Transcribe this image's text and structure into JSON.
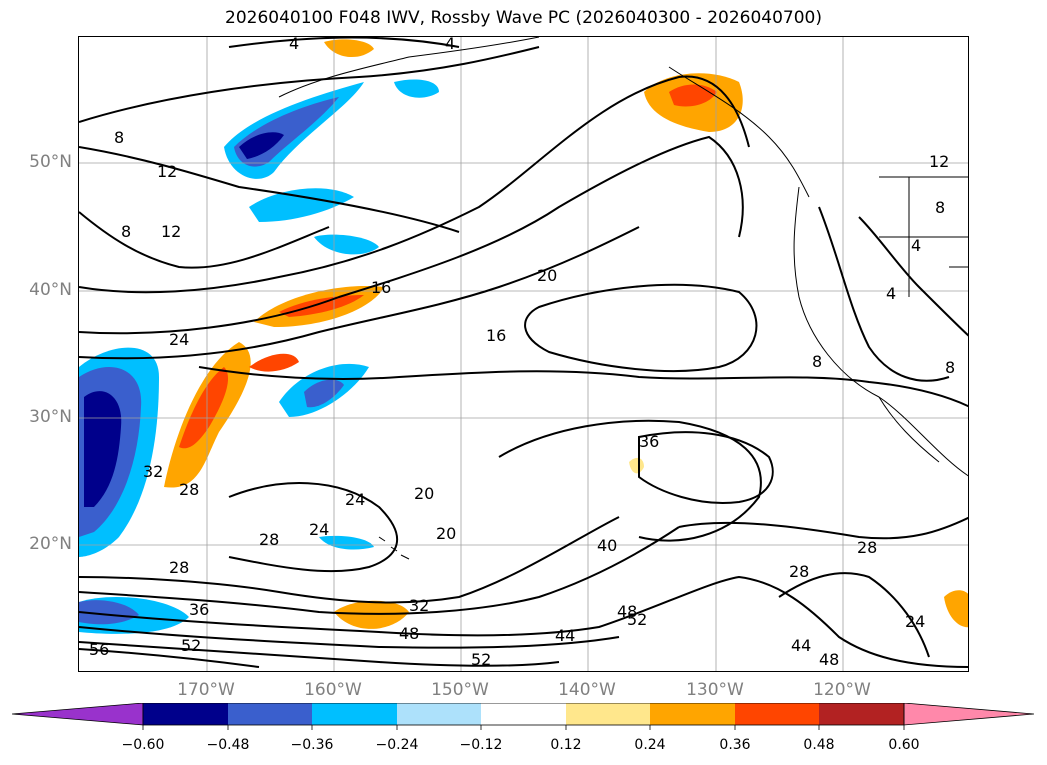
{
  "title": "2026040100 F048 IWV, Rossby Wave PC (2026040300 - 2026040700)",
  "latitude_labels": [
    "50°N",
    "40°N",
    "30°N",
    "20°N"
  ],
  "longitude_labels": [
    "170°W",
    "160°W",
    "150°W",
    "140°W",
    "130°W",
    "120°W"
  ],
  "contour_labels": [
    "4",
    "8",
    "12",
    "8",
    "12",
    "4",
    "12",
    "8",
    "4",
    "4",
    "16",
    "20",
    "24",
    "16",
    "8",
    "36",
    "32",
    "28",
    "24",
    "28",
    "24",
    "20",
    "20",
    "40",
    "28",
    "28",
    "36",
    "32",
    "48",
    "52",
    "56",
    "52",
    "44",
    "48",
    "52",
    "44",
    "48",
    "24",
    "28",
    "8"
  ],
  "colorbar": {
    "tick_labels": [
      "−0.60",
      "−0.48",
      "−0.36",
      "−0.24",
      "−0.12",
      "0.12",
      "0.24",
      "0.36",
      "0.48",
      "0.60"
    ],
    "colors": [
      "#9932CC",
      "#00008B",
      "#3A5FCD",
      "#00BFFF",
      "#ADE1FB",
      "#FFFFFF",
      "#FFE78C",
      "#FFA500",
      "#FF4500",
      "#B22222",
      "#FF88AA"
    ]
  },
  "palette": {
    "contour": "#000000",
    "coast": "#000000",
    "grid": "#a0a0a0",
    "axis_label": "#808080"
  }
}
